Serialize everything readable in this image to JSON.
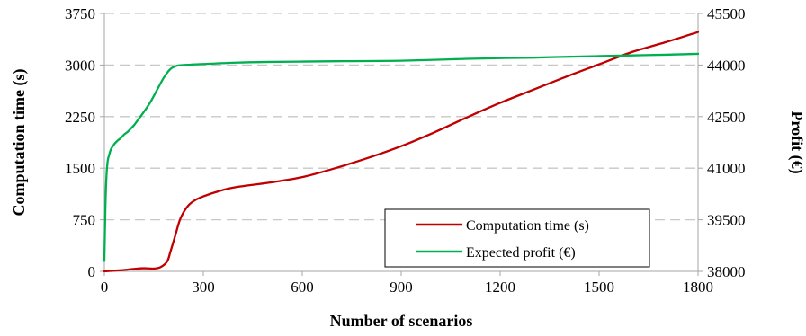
{
  "chart_data": {
    "type": "line",
    "title": "",
    "xlabel": "Number of scenarios",
    "ylabel": "Computation time (s)",
    "y2label": "Profit (€)",
    "xlim": [
      0,
      1800
    ],
    "ylim": [
      0,
      3750
    ],
    "y2lim": [
      38000,
      45500
    ],
    "x_ticks": [
      "0",
      "300",
      "600",
      "900",
      "1200",
      "1500",
      "1800"
    ],
    "y_ticks": [
      "0",
      "750",
      "1500",
      "2250",
      "3000",
      "3750"
    ],
    "y2_ticks": [
      "38000",
      "39500",
      "41000",
      "42500",
      "44000",
      "45500"
    ],
    "grid": "horizontal dashed",
    "legend_position": "bottom-right",
    "series": [
      {
        "name": "Computation time (s)",
        "axis": "left",
        "color": "#c00000",
        "x": [
          0,
          30,
          60,
          90,
          120,
          150,
          170,
          190,
          200,
          215,
          230,
          250,
          270,
          300,
          350,
          400,
          500,
          600,
          700,
          800,
          900,
          1000,
          1100,
          1200,
          1300,
          1400,
          1500,
          1600,
          1700,
          1800
        ],
        "y": [
          0,
          10,
          20,
          35,
          45,
          40,
          60,
          140,
          280,
          520,
          760,
          930,
          1020,
          1090,
          1170,
          1225,
          1290,
          1370,
          1500,
          1650,
          1820,
          2020,
          2240,
          2450,
          2640,
          2830,
          3010,
          3190,
          3330,
          3480
        ]
      },
      {
        "name": "Expected profit (€)",
        "axis": "right",
        "color": "#00b050",
        "x": [
          0,
          3,
          6,
          10,
          15,
          20,
          30,
          40,
          50,
          60,
          70,
          80,
          90,
          100,
          120,
          140,
          160,
          180,
          200,
          220,
          240,
          260,
          300,
          400,
          500,
          600,
          700,
          800,
          900,
          1000,
          1100,
          1200,
          1300,
          1400,
          1500,
          1600,
          1700,
          1800
        ],
        "y": [
          38300,
          39800,
          40700,
          41200,
          41400,
          41550,
          41700,
          41800,
          41880,
          41980,
          42050,
          42150,
          42250,
          42380,
          42640,
          42930,
          43280,
          43630,
          43880,
          43980,
          44000,
          44010,
          44030,
          44070,
          44090,
          44100,
          44110,
          44115,
          44125,
          44150,
          44180,
          44200,
          44215,
          44240,
          44260,
          44280,
          44300,
          44325
        ]
      }
    ]
  }
}
